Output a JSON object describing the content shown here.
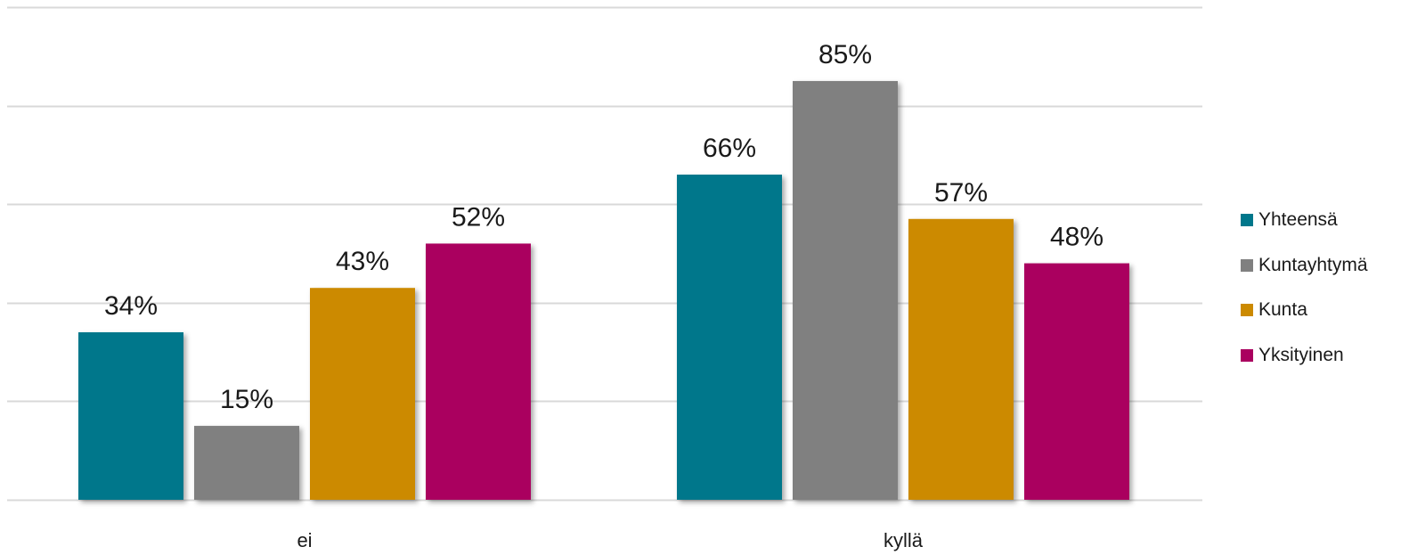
{
  "chart_data": {
    "type": "bar",
    "categories": [
      "ei",
      "kyllä"
    ],
    "series": [
      {
        "name": "Yhteensä",
        "values": [
          34,
          66
        ],
        "labels": [
          "34%",
          "66%"
        ],
        "color": "#00778B"
      },
      {
        "name": "Kuntayhtymä",
        "values": [
          15,
          85
        ],
        "labels": [
          "15%",
          "85%"
        ],
        "color": "#808080"
      },
      {
        "name": "Kunta",
        "values": [
          43,
          57
        ],
        "labels": [
          "43%",
          "57%"
        ],
        "color": "#CC8A00"
      },
      {
        "name": "Yksityinen",
        "values": [
          52,
          48
        ],
        "labels": [
          "52%",
          "48%"
        ],
        "color": "#AA005F"
      }
    ],
    "ylim": [
      0,
      100
    ],
    "grid": true,
    "legend": "right"
  }
}
